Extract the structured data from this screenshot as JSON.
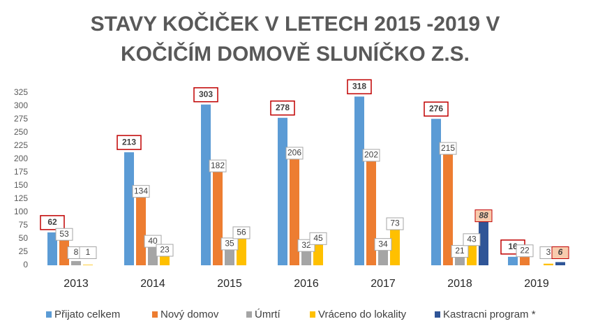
{
  "chart_data": {
    "type": "bar",
    "title": "STAVY KOČIČEK V LETECH 2015 -2019 V",
    "subtitle": "KOČIČÍM DOMOVĚ SLUNÍČKO Z.S.",
    "categories": [
      "2013",
      "2014",
      "2015",
      "2016",
      "2017",
      "2018",
      "2019"
    ],
    "series": [
      {
        "name": "Přijato celkem",
        "color": "#5b9bd5",
        "values": [
          62,
          213,
          303,
          278,
          318,
          276,
          16
        ]
      },
      {
        "name": "Nový domov",
        "color": "#ed7d31",
        "values": [
          53,
          134,
          182,
          206,
          202,
          215,
          22
        ]
      },
      {
        "name": "Úmrtí",
        "color": "#a5a5a5",
        "values": [
          8,
          40,
          35,
          32,
          34,
          21,
          0
        ]
      },
      {
        "name": "Vráceno do lokality",
        "color": "#ffc000",
        "values": [
          1,
          23,
          56,
          45,
          73,
          43,
          3
        ]
      },
      {
        "name": "Kastracni program *",
        "color": "#2f5597",
        "values": [
          0,
          0,
          0,
          0,
          0,
          88,
          6
        ]
      }
    ],
    "ylim": [
      0,
      325
    ],
    "yticks": [
      0,
      25,
      50,
      75,
      100,
      125,
      150,
      175,
      200,
      225,
      250,
      275,
      300,
      325
    ],
    "grid": false,
    "legend": "bottom"
  }
}
